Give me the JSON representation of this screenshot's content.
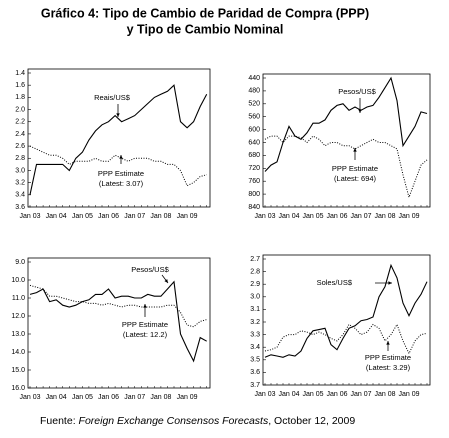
{
  "title": [
    "Gráfico 4: Tipo de Cambio de Paridad de Compra (PPP)",
    "y Tipo de Cambio Nominal"
  ],
  "source": {
    "prefix": "Fuente: ",
    "italic": "Foreign Exchange Consensos Forecasts",
    "suffix": ", October 12, 2009"
  },
  "chart_data": [
    {
      "type": "line",
      "inverted": true,
      "ylim": [
        1.4,
        3.6
      ],
      "yticks": [
        1.4,
        1.6,
        1.8,
        {
          "value": 2,
          "label": "2.0"
        },
        2.2,
        2.4,
        2.6,
        2.8,
        {
          "value": 3,
          "label": "3.0"
        },
        3.2,
        3.4,
        3.6
      ],
      "categories": [
        "Jan 03",
        null,
        null,
        null,
        "Jan 04",
        null,
        null,
        null,
        "Jan 05",
        null,
        null,
        null,
        "Jan 06",
        null,
        null,
        null,
        "Jan 07",
        null,
        null,
        null,
        "Jan 08",
        null,
        null,
        null,
        "Jan 09",
        null,
        null,
        null
      ],
      "series": [
        {
          "name": "Reais/US$",
          "color": "#000000",
          "style": "solid",
          "values": [
            3.4,
            2.9,
            2.9,
            2.9,
            2.9,
            2.9,
            3.0,
            2.8,
            2.7,
            2.5,
            2.35,
            2.25,
            2.2,
            2.1,
            2.2,
            2.15,
            2.1,
            2.0,
            1.9,
            1.8,
            1.75,
            1.7,
            1.6,
            2.2,
            2.3,
            2.2,
            1.95,
            1.75
          ]
        },
        {
          "name": "PPP Estimate",
          "color": "#000000",
          "style": "dotted",
          "values": [
            2.6,
            2.65,
            2.7,
            2.75,
            2.75,
            2.8,
            2.9,
            2.85,
            2.85,
            2.85,
            2.8,
            2.85,
            2.85,
            2.75,
            2.8,
            2.85,
            2.8,
            2.8,
            2.8,
            2.85,
            2.85,
            2.9,
            2.9,
            3.0,
            3.25,
            3.2,
            3.1,
            3.07
          ]
        }
      ],
      "annotation": "(Latest: 3.07)"
    },
    {
      "type": "line",
      "inverted": true,
      "ylim": [
        440,
        840
      ],
      "yticks": [
        440,
        480,
        520,
        560,
        600,
        640,
        680,
        720,
        760,
        800,
        840
      ],
      "categories": [
        "Jan 03",
        null,
        null,
        null,
        "Jan 04",
        null,
        null,
        null,
        "Jan 05",
        null,
        null,
        null,
        "Jan 06",
        null,
        null,
        null,
        "Jan 07",
        null,
        null,
        null,
        "Jan 08",
        null,
        null,
        null,
        "Jan 09",
        null,
        null,
        null
      ],
      "series": [
        {
          "name": "Pesos/US$",
          "color": "#000000",
          "style": "solid",
          "values": [
            730,
            710,
            700,
            640,
            590,
            620,
            630,
            610,
            580,
            580,
            570,
            540,
            525,
            520,
            540,
            530,
            540,
            530,
            525,
            500,
            470,
            440,
            510,
            650,
            620,
            590,
            545,
            550
          ]
        },
        {
          "name": "PPP Estimate",
          "color": "#000000",
          "style": "dotted",
          "values": [
            630,
            620,
            620,
            640,
            620,
            620,
            625,
            640,
            620,
            630,
            650,
            640,
            640,
            650,
            650,
            660,
            650,
            640,
            630,
            640,
            640,
            650,
            660,
            740,
            810,
            760,
            710,
            694
          ]
        }
      ],
      "annotation": "(Latest: 694)"
    },
    {
      "type": "line",
      "inverted": true,
      "ylim": [
        9,
        16
      ],
      "yticks": [
        {
          "value": 9,
          "label": "9.0"
        },
        {
          "value": 10,
          "label": "10.0"
        },
        {
          "value": 11,
          "label": "11.0"
        },
        {
          "value": 12,
          "label": "12.0"
        },
        {
          "value": 13,
          "label": "13.0"
        },
        {
          "value": 14,
          "label": "14.0"
        },
        {
          "value": 15,
          "label": "15.0"
        },
        {
          "value": 16,
          "label": "16.0"
        }
      ],
      "categories": [
        "Jan 03",
        null,
        null,
        null,
        "Jan 04",
        null,
        null,
        null,
        "Jan 05",
        null,
        null,
        null,
        "Jan 06",
        null,
        null,
        null,
        "Jan 07",
        null,
        null,
        null,
        "Jan 08",
        null,
        null,
        null,
        "Jan 09",
        null,
        null,
        null
      ],
      "series": [
        {
          "name": "Pesos/US$",
          "color": "#000000",
          "style": "solid",
          "values": [
            10.8,
            10.7,
            10.5,
            11.2,
            11.1,
            11.4,
            11.5,
            11.4,
            11.2,
            11.1,
            10.8,
            10.8,
            10.5,
            11.0,
            10.9,
            10.9,
            11.0,
            11.0,
            10.8,
            10.9,
            10.9,
            10.5,
            10.1,
            13.0,
            13.8,
            14.5,
            13.2,
            13.4
          ]
        },
        {
          "name": "PPP Estimate",
          "color": "#000000",
          "style": "dotted",
          "values": [
            10.3,
            10.4,
            10.5,
            10.9,
            10.9,
            11.0,
            11.1,
            11.2,
            11.2,
            11.3,
            11.3,
            11.4,
            11.3,
            11.4,
            11.5,
            11.4,
            11.4,
            11.5,
            11.5,
            11.5,
            11.5,
            11.4,
            11.4,
            11.8,
            12.5,
            12.6,
            12.3,
            12.2
          ]
        }
      ],
      "annotation": "(Latest: 12.2)"
    },
    {
      "type": "line",
      "inverted": true,
      "ylim": [
        2.7,
        3.7
      ],
      "yticks": [
        2.7,
        2.8,
        2.9,
        {
          "value": 3,
          "label": "3.0"
        },
        3.1,
        3.2,
        3.3,
        3.4,
        3.5,
        3.6,
        3.7
      ],
      "categories": [
        "Jan 03",
        null,
        null,
        null,
        "Jan 04",
        null,
        null,
        null,
        "Jan 05",
        null,
        null,
        null,
        "Jan 06",
        null,
        null,
        null,
        "Jan 07",
        null,
        null,
        null,
        "Jan 08",
        null,
        null,
        null,
        "Jan 09",
        null,
        null,
        null
      ],
      "series": [
        {
          "name": "Soles/US$",
          "color": "#000000",
          "style": "solid",
          "values": [
            3.48,
            3.46,
            3.47,
            3.48,
            3.46,
            3.47,
            3.43,
            3.33,
            3.27,
            3.26,
            3.25,
            3.38,
            3.42,
            3.33,
            3.25,
            3.23,
            3.19,
            3.18,
            3.16,
            3.0,
            2.92,
            2.75,
            2.85,
            3.05,
            3.15,
            3.05,
            2.98,
            2.88
          ]
        },
        {
          "name": "PPP Estimate",
          "color": "#000000",
          "style": "dotted",
          "values": [
            3.43,
            3.42,
            3.4,
            3.32,
            3.3,
            3.3,
            3.27,
            3.28,
            3.3,
            3.28,
            3.3,
            3.33,
            3.35,
            3.3,
            3.22,
            3.25,
            3.3,
            3.28,
            3.22,
            3.25,
            3.35,
            3.3,
            3.22,
            3.35,
            3.45,
            3.35,
            3.3,
            3.29
          ]
        }
      ],
      "annotation": "(Latest: 3.29)"
    }
  ]
}
